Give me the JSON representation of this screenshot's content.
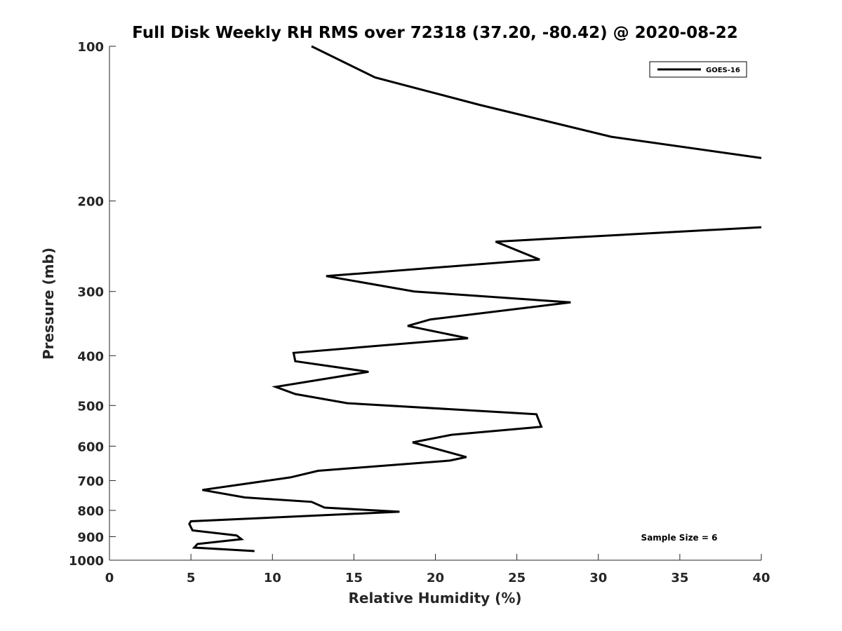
{
  "chart_data": {
    "type": "line",
    "title": "Full Disk Weekly RH RMS over 72318 (37.20, -80.42) @ 2020-08-22",
    "xlabel": "Relative Humidity (%)",
    "ylabel": "Pressure (mb)",
    "xlim": [
      0,
      40
    ],
    "ylim": [
      100,
      1000
    ],
    "y_scale": "log",
    "y_reversed": true,
    "grid": false,
    "legend_position": "top-right",
    "x_ticks": [
      "0",
      "5",
      "10",
      "15",
      "20",
      "25",
      "30",
      "35",
      "40"
    ],
    "y_ticks": [
      "100",
      "200",
      "300",
      "400",
      "500",
      "600",
      "700",
      "800",
      "900",
      "1000"
    ],
    "annotation": "Sample Size = 6",
    "series": [
      {
        "name": "GOES-16",
        "color": "#000000",
        "segments": [
          {
            "x": [
              12.4,
              16.3,
              22.7,
              30.8,
              40.0
            ],
            "y": [
              100,
              115,
              130,
              150,
              165
            ]
          },
          {
            "x": [
              40.0,
              23.7,
              26.4,
              13.3,
              18.7,
              28.3,
              19.7,
              18.3,
              22.0,
              11.3,
              11.4,
              15.9,
              10.2,
              11.4,
              14.6,
              26.2,
              26.5,
              21.0,
              18.6,
              21.9,
              20.9,
              12.8,
              11.1,
              5.7,
              8.3,
              12.4,
              13.2,
              17.8,
              5.0,
              4.9,
              5.1,
              7.8,
              8.1,
              5.4,
              5.2,
              8.9
            ],
            "y": [
              225,
              240,
              260,
              280,
              300,
              315,
              340,
              350,
              370,
              395,
              410,
              430,
              460,
              475,
              495,
              520,
              550,
              570,
              590,
              630,
              640,
              670,
              690,
              730,
              755,
              770,
              790,
              805,
              840,
              850,
              875,
              895,
              910,
              930,
              945,
              960
            ]
          }
        ]
      }
    ]
  }
}
